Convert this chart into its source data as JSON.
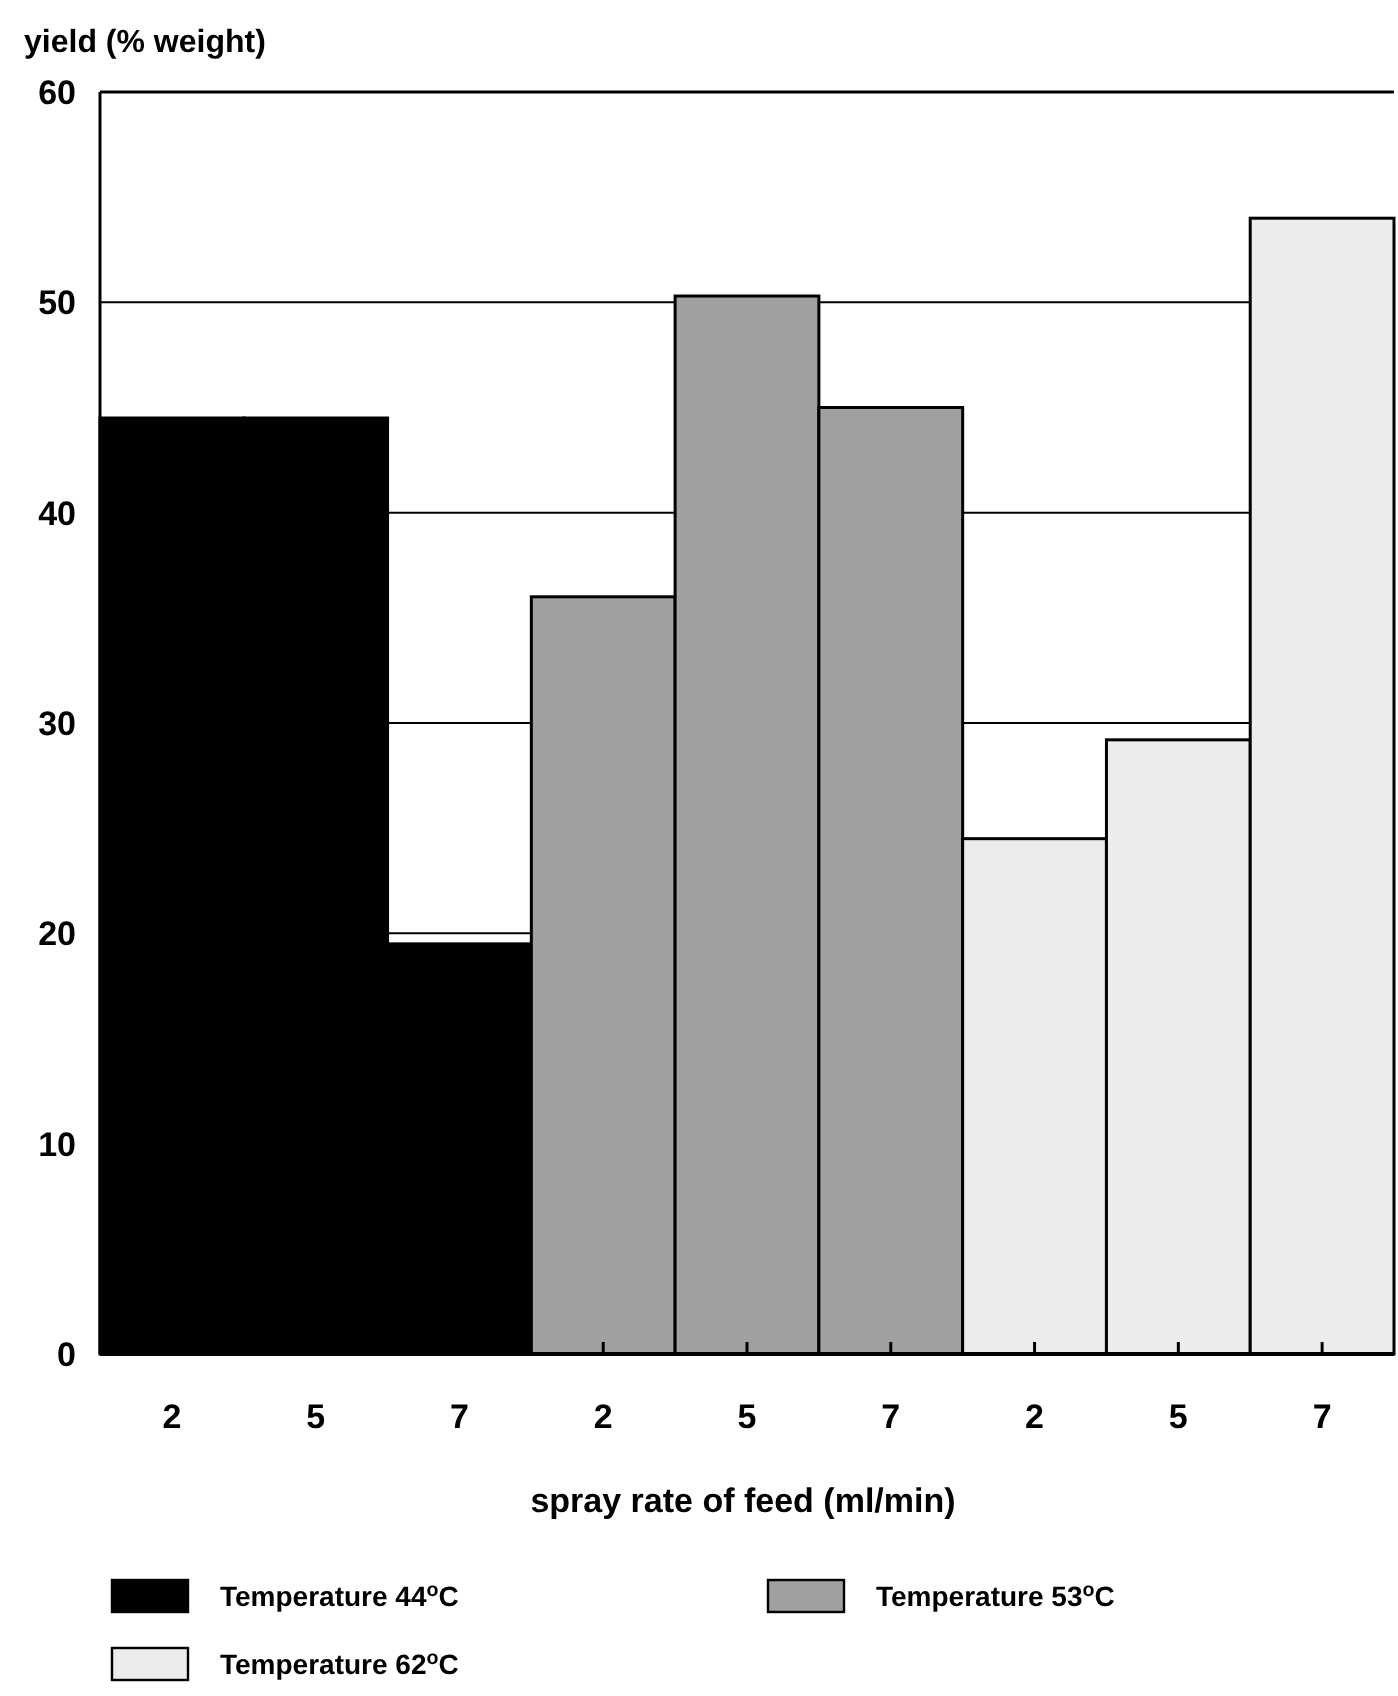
{
  "chart_data": {
    "type": "bar",
    "ylabel": "yield (% weight)",
    "xlabel": "spray rate of feed (ml/min)",
    "categories": [
      "2",
      "5",
      "7",
      "2",
      "5",
      "7",
      "2",
      "5",
      "7"
    ],
    "series": [
      {
        "name": "Temperature 44$^{o}$C",
        "color": "#000000",
        "values": [
          44.5,
          44.5,
          19.5,
          null,
          null,
          null,
          null,
          null,
          null
        ]
      },
      {
        "name": "Temperature 53$^{o}$C",
        "color": "#a0a0a0",
        "values": [
          null,
          null,
          null,
          36,
          50.3,
          45,
          null,
          null,
          null
        ]
      },
      {
        "name": "Temperature 62$^{o}$C",
        "color": "#ececec",
        "values": [
          null,
          null,
          null,
          null,
          null,
          null,
          24.5,
          29.2,
          54
        ]
      }
    ],
    "ylim": [
      0,
      60
    ],
    "yticks": [
      0,
      10,
      20,
      30,
      40,
      50,
      60
    ],
    "grid": "y",
    "legend": "bottom"
  }
}
